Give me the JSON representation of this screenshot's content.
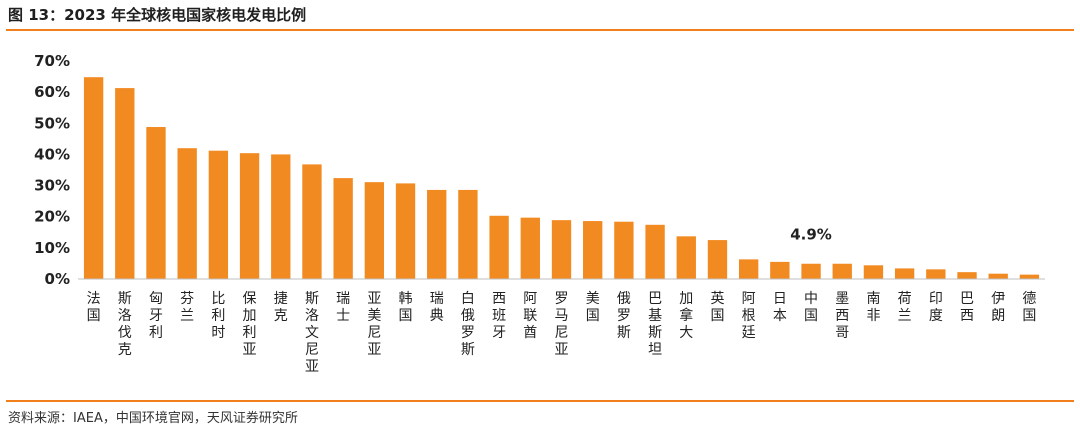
{
  "header": {
    "title": "图 13：2023 年全球核电国家核电发电比例"
  },
  "footer": {
    "source": "资料来源：IAEA，中国环境官网，天风证券研究所"
  },
  "colors": {
    "bar": "#F28A22",
    "rule": "#F07F1C",
    "axis": "#BFBFBF"
  },
  "chart_data": {
    "type": "bar",
    "categories": [
      "法国",
      "斯洛伐克",
      "匈牙利",
      "芬兰",
      "比利时",
      "保加利亚",
      "捷克",
      "斯洛文尼亚",
      "瑞士",
      "亚美尼亚",
      "韩国",
      "瑞典",
      "白俄罗斯",
      "西班牙",
      "阿联酋",
      "罗马尼亚",
      "美国",
      "俄罗斯",
      "巴基斯坦",
      "加拿大",
      "英国",
      "阿根廷",
      "日本",
      "中国",
      "墨西哥",
      "南非",
      "荷兰",
      "印度",
      "巴西",
      "伊朗",
      "德国"
    ],
    "values": [
      64.8,
      61.3,
      48.8,
      42.0,
      41.2,
      40.4,
      40.0,
      36.8,
      32.4,
      31.1,
      30.7,
      28.6,
      28.6,
      20.3,
      19.7,
      18.9,
      18.6,
      18.4,
      17.4,
      13.7,
      12.5,
      6.3,
      5.5,
      4.9,
      4.9,
      4.4,
      3.4,
      3.1,
      2.2,
      1.7,
      1.4
    ],
    "yticks": [
      "0%",
      "10%",
      "20%",
      "30%",
      "40%",
      "50%",
      "60%",
      "70%"
    ],
    "ylim": [
      0,
      70
    ],
    "annotations": [
      {
        "category": "中国",
        "text": "4.9%"
      }
    ],
    "title": "",
    "xlabel": "",
    "ylabel": "",
    "grid": false,
    "legend": false
  }
}
